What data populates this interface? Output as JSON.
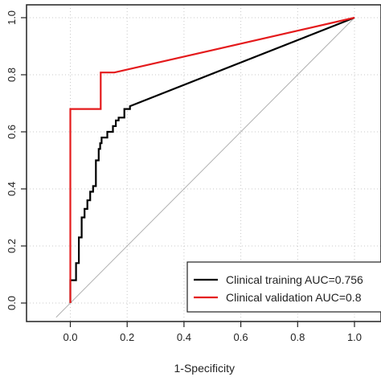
{
  "chart_data": {
    "type": "line",
    "xlabel": "1-Specificity",
    "ylabel": "",
    "xlim": [
      0,
      1
    ],
    "ylim": [
      0,
      1
    ],
    "x_ticks": [
      0.0,
      0.2,
      0.4,
      0.6,
      0.8,
      1.0
    ],
    "x_tick_labels": [
      "0.0",
      "0.2",
      "0.4",
      "0.6",
      "0.8",
      "1.0"
    ],
    "y_ticks": [
      0.0,
      0.2,
      0.4,
      0.6,
      0.8,
      1.0
    ],
    "y_tick_labels": [
      "0.0",
      "0.2",
      "0.4",
      "0.6",
      "0.8",
      "1.0"
    ],
    "grid": true,
    "grid_style": "dotted",
    "reference_line": true,
    "legend_position": "bottom-right",
    "legend": [
      {
        "label": "Clinical training AUC=0.756",
        "color": "#000000"
      },
      {
        "label": "Clinical validation AUC=0.8",
        "color": "#e41a1c"
      }
    ],
    "series": [
      {
        "name": "Clinical training AUC=0.756",
        "color": "#000000",
        "x": [
          0.0,
          0.0,
          0.02,
          0.02,
          0.03,
          0.03,
          0.04,
          0.04,
          0.05,
          0.05,
          0.06,
          0.06,
          0.07,
          0.07,
          0.08,
          0.08,
          0.09,
          0.09,
          0.1,
          0.1,
          0.105,
          0.105,
          0.11,
          0.11,
          0.13,
          0.13,
          0.15,
          0.15,
          0.16,
          0.16,
          0.17,
          0.17,
          0.19,
          0.19,
          0.21,
          0.21,
          1.0
        ],
        "y": [
          0.0,
          0.08,
          0.08,
          0.14,
          0.14,
          0.23,
          0.23,
          0.3,
          0.3,
          0.33,
          0.33,
          0.36,
          0.36,
          0.39,
          0.39,
          0.41,
          0.41,
          0.5,
          0.5,
          0.54,
          0.54,
          0.56,
          0.56,
          0.58,
          0.58,
          0.6,
          0.6,
          0.62,
          0.62,
          0.64,
          0.64,
          0.65,
          0.65,
          0.68,
          0.68,
          0.69,
          1.0
        ]
      },
      {
        "name": "Clinical validation AUC=0.8",
        "color": "#e41a1c",
        "x": [
          0.0,
          0.0,
          0.107,
          0.107,
          0.155,
          1.0
        ],
        "y": [
          0.0,
          0.68,
          0.68,
          0.808,
          0.808,
          1.0
        ]
      }
    ]
  }
}
